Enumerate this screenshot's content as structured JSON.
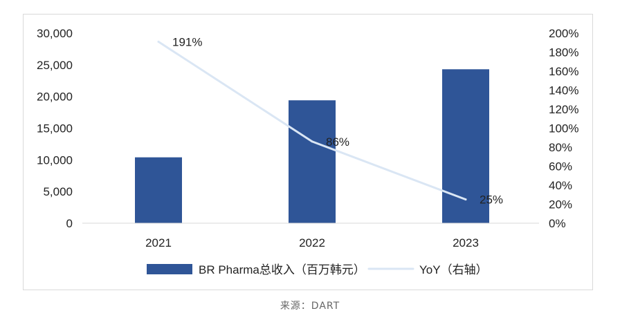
{
  "chart_data": {
    "type": "bar",
    "categories": [
      "2021",
      "2022",
      "2023"
    ],
    "series": [
      {
        "name": "BR Pharma总收入（百万韩元）",
        "type": "bar",
        "axis": "left",
        "values": [
          10400,
          19400,
          24300
        ],
        "color": "#2f5597"
      },
      {
        "name": "YoY（右轴）",
        "type": "line",
        "axis": "right",
        "values": [
          191,
          86,
          25
        ],
        "labels": [
          "191%",
          "86%",
          "25%"
        ],
        "color": "#dae6f4"
      }
    ],
    "left_axis": {
      "ylim": [
        0,
        30000
      ],
      "ticks": [
        "0",
        "5,000",
        "10,000",
        "15,000",
        "20,000",
        "25,000",
        "30,000"
      ]
    },
    "right_axis": {
      "ylim": [
        0,
        200
      ],
      "ticks": [
        "0%",
        "20%",
        "40%",
        "60%",
        "80%",
        "100%",
        "120%",
        "140%",
        "160%",
        "180%",
        "200%"
      ]
    },
    "legend": {
      "position": "bottom"
    },
    "grid": false
  },
  "source": "来源：DART"
}
